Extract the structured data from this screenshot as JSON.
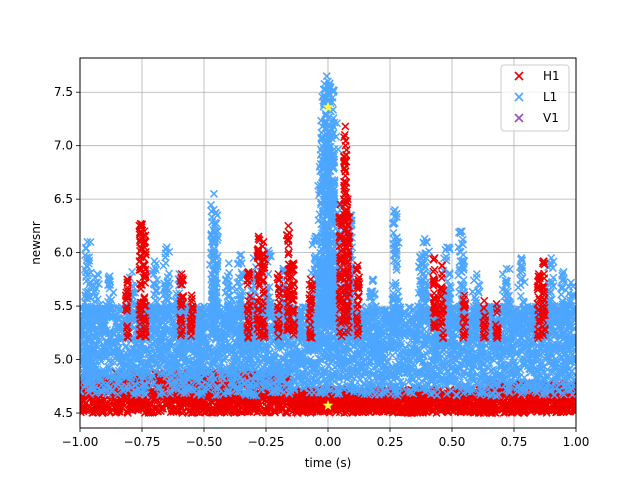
{
  "chart_data": {
    "type": "scatter",
    "xlabel": "time (s)",
    "ylabel": "newsnr",
    "xlim": [
      -1.0,
      1.0
    ],
    "ylim": [
      4.36,
      7.82
    ],
    "xticks": [
      -1.0,
      -0.75,
      -0.5,
      -0.25,
      0.0,
      0.25,
      0.5,
      0.75,
      1.0
    ],
    "xtick_labels": [
      "−1.00",
      "−0.75",
      "−0.50",
      "−0.25",
      "0.00",
      "0.25",
      "0.50",
      "0.75",
      "1.00"
    ],
    "yticks": [
      4.5,
      5.0,
      5.5,
      6.0,
      6.5,
      7.0,
      7.5
    ],
    "ytick_labels": [
      "4.5",
      "5.0",
      "5.5",
      "6.0",
      "6.5",
      "7.0",
      "7.5"
    ],
    "grid": true,
    "legend_position": "top-right",
    "series": [
      {
        "name": "H1",
        "color": "#ee0000",
        "marker": "x",
        "bands": [
          {
            "x": [
              -1.0,
              -0.15
            ],
            "y": [
              4.5,
              4.88
            ]
          },
          {
            "x": [
              -0.15,
              0.65
            ],
            "y": [
              4.5,
              4.72
            ]
          },
          {
            "x": [
              0.65,
              1.0
            ],
            "y": [
              4.5,
              4.78
            ]
          }
        ],
        "spikes": [
          {
            "x": -0.755,
            "ymax": 6.27
          },
          {
            "x": -0.74,
            "ymax": 6.2
          },
          {
            "x": -0.81,
            "ymax": 5.75
          },
          {
            "x": -0.59,
            "ymax": 5.8
          },
          {
            "x": -0.55,
            "ymax": 5.6
          },
          {
            "x": -0.28,
            "ymax": 6.15
          },
          {
            "x": -0.26,
            "ymax": 6.1
          },
          {
            "x": -0.32,
            "ymax": 5.82
          },
          {
            "x": -0.2,
            "ymax": 5.8
          },
          {
            "x": -0.14,
            "ymax": 5.9
          },
          {
            "x": -0.16,
            "ymax": 6.25
          },
          {
            "x": -0.07,
            "ymax": 5.75
          },
          {
            "x": 0.05,
            "ymax": 6.45
          },
          {
            "x": 0.07,
            "ymax": 7.18
          },
          {
            "x": 0.08,
            "ymax": 6.5
          },
          {
            "x": 0.12,
            "ymax": 5.88
          },
          {
            "x": 0.43,
            "ymax": 5.95
          },
          {
            "x": 0.46,
            "ymax": 5.88
          },
          {
            "x": 0.55,
            "ymax": 5.6
          },
          {
            "x": 0.63,
            "ymax": 5.55
          },
          {
            "x": 0.68,
            "ymax": 5.52
          },
          {
            "x": 0.87,
            "ymax": 5.92
          },
          {
            "x": 0.85,
            "ymax": 5.8
          }
        ]
      },
      {
        "name": "L1",
        "color": "#4da6ff",
        "marker": "x",
        "band": {
          "x": [
            -1.0,
            1.0
          ],
          "y": [
            4.66,
            5.5
          ]
        },
        "spikes": [
          {
            "x": -0.97,
            "ymax": 6.1
          },
          {
            "x": -0.93,
            "ymax": 5.8
          },
          {
            "x": -0.88,
            "ymax": 5.78
          },
          {
            "x": -0.79,
            "ymax": 5.82
          },
          {
            "x": -0.7,
            "ymax": 5.92
          },
          {
            "x": -0.65,
            "ymax": 6.05
          },
          {
            "x": -0.6,
            "ymax": 5.8
          },
          {
            "x": -0.46,
            "ymax": 6.55
          },
          {
            "x": -0.455,
            "ymax": 6.28
          },
          {
            "x": -0.4,
            "ymax": 5.9
          },
          {
            "x": -0.35,
            "ymax": 5.98
          },
          {
            "x": -0.3,
            "ymax": 5.95
          },
          {
            "x": -0.24,
            "ymax": 6.02
          },
          {
            "x": -0.18,
            "ymax": 5.85
          },
          {
            "x": -0.05,
            "ymax": 6.15
          },
          {
            "x": -0.02,
            "ymax": 6.8
          },
          {
            "x": -0.01,
            "ymax": 7.3
          },
          {
            "x": -0.005,
            "ymax": 7.65
          },
          {
            "x": 0.0,
            "ymax": 7.6
          },
          {
            "x": 0.01,
            "ymax": 7.4
          },
          {
            "x": 0.02,
            "ymax": 6.9
          },
          {
            "x": 0.04,
            "ymax": 6.45
          },
          {
            "x": 0.09,
            "ymax": 6.35
          },
          {
            "x": 0.18,
            "ymax": 5.75
          },
          {
            "x": 0.27,
            "ymax": 6.4
          },
          {
            "x": 0.38,
            "ymax": 5.98
          },
          {
            "x": 0.39,
            "ymax": 6.13
          },
          {
            "x": 0.48,
            "ymax": 6.05
          },
          {
            "x": 0.54,
            "ymax": 6.2
          },
          {
            "x": 0.6,
            "ymax": 5.8
          },
          {
            "x": 0.72,
            "ymax": 5.85
          },
          {
            "x": 0.78,
            "ymax": 5.95
          },
          {
            "x": 0.9,
            "ymax": 5.95
          },
          {
            "x": 0.95,
            "ymax": 5.82
          },
          {
            "x": 0.98,
            "ymax": 5.72
          }
        ]
      },
      {
        "name": "V1",
        "color": "#9a4fc0",
        "marker": "x",
        "points": []
      }
    ],
    "annotations": [
      {
        "marker": "star",
        "color": "#ffff33",
        "x": 0.0,
        "y": 7.36
      },
      {
        "marker": "star",
        "color": "#ffff33",
        "x": 0.0,
        "y": 4.57
      }
    ]
  }
}
